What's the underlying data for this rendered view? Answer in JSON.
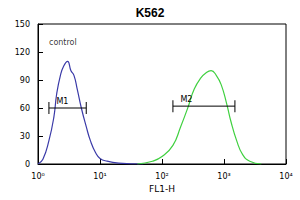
{
  "chart_data": {
    "type": "line",
    "title": "K562",
    "x_label": "FL1-H",
    "log": "x",
    "grid": false,
    "xlim": [
      1,
      10000
    ],
    "xticks": [
      {
        "value": 1,
        "label": "10⁰"
      },
      {
        "value": 10,
        "label": "10¹"
      },
      {
        "value": 100,
        "label": "10²"
      },
      {
        "value": 1000,
        "label": "10³"
      },
      {
        "value": 10000,
        "label": "10⁴"
      }
    ],
    "ylim": [
      0,
      150
    ],
    "yticks": [
      0,
      30,
      60,
      90,
      120,
      150
    ],
    "series": [
      {
        "name": "control",
        "color": "#3a3aa8",
        "x": [
          1,
          1.2,
          1.5,
          1.8,
          2.0,
          2.3,
          2.6,
          3.0,
          3.4,
          3.8,
          4.3,
          5,
          6,
          7,
          8.5,
          10,
          13,
          20,
          50
        ],
        "values": [
          0,
          5,
          25,
          50,
          75,
          95,
          105,
          110,
          100,
          95,
          80,
          60,
          40,
          25,
          12,
          6,
          3,
          1,
          0
        ]
      },
      {
        "color": "#40d040",
        "x": [
          40,
          70,
          100,
          150,
          200,
          260,
          330,
          420,
          520,
          620,
          750,
          900,
          1100,
          1300,
          1600,
          2000,
          2600,
          4000
        ],
        "values": [
          0,
          3,
          8,
          20,
          40,
          60,
          80,
          92,
          98,
          100,
          95,
          85,
          65,
          45,
          25,
          10,
          3,
          0
        ]
      }
    ],
    "annotations": [
      {
        "text": "control",
        "x": 1.25,
        "y": 130
      },
      {
        "text": "M1",
        "x": [
          1.5,
          6
        ],
        "y": 60
      },
      {
        "text": "M2",
        "x": [
          150,
          1500
        ],
        "y": 62
      }
    ]
  }
}
